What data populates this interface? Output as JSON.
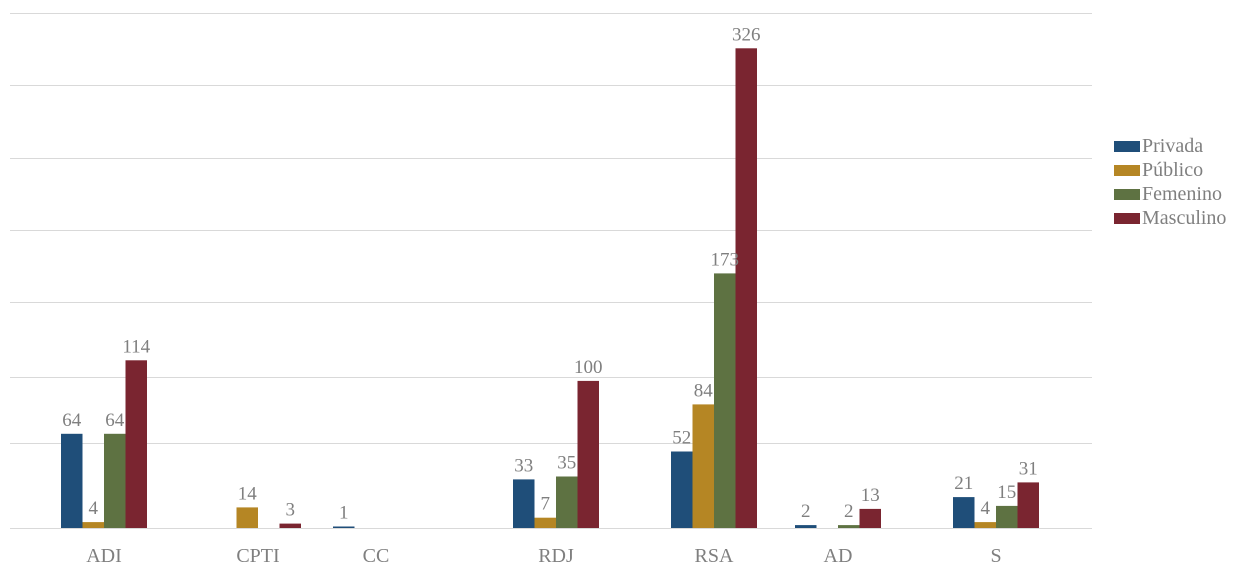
{
  "chart_data": {
    "type": "bar",
    "categories": [
      "ADI",
      "CPTI",
      "CC",
      "RDJ",
      "RSA",
      "AD",
      "S"
    ],
    "series": [
      {
        "name": "Privada",
        "color": "#1f4e79",
        "values": [
          64,
          null,
          1,
          33,
          52,
          2,
          21
        ]
      },
      {
        "name": "Público",
        "color": "#b58624",
        "values": [
          4,
          14,
          null,
          7,
          84,
          null,
          4
        ]
      },
      {
        "name": "Femenino",
        "color": "#5e7242",
        "values": [
          64,
          null,
          null,
          35,
          173,
          2,
          15
        ]
      },
      {
        "name": "Masculino",
        "color": "#7a2530",
        "values": [
          114,
          3,
          null,
          100,
          326,
          13,
          31
        ]
      }
    ],
    "ylim": [
      0,
      350
    ],
    "grid": true,
    "legend_position": "right"
  }
}
